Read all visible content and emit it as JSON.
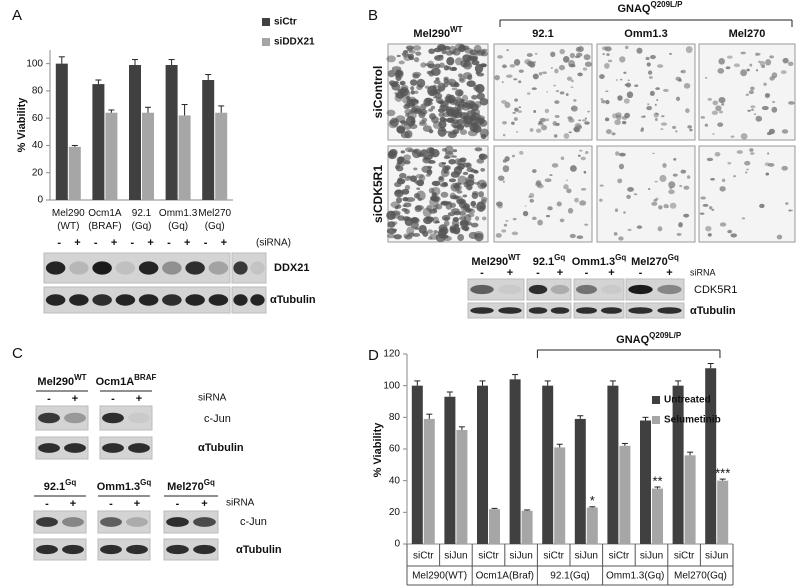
{
  "panel_labels": [
    "A",
    "B",
    "C",
    "D"
  ],
  "chart_data": [
    {
      "type": "bar",
      "y_label": "% Viability",
      "categories": [
        "Mel290\n(WT)",
        "Ocm1A\n(BRAF)",
        "92.1\n(Gq)",
        "Omm1.3\n(Gq)",
        "Mel270\n(Gq)"
      ],
      "series": [
        {
          "name": "siCtr",
          "color": "#404040",
          "values": [
            100,
            85,
            99,
            99,
            88
          ],
          "errors": [
            5,
            3,
            4,
            4,
            4
          ]
        },
        {
          "name": "siDDX21",
          "color": "#a6a6a6",
          "values": [
            39,
            64,
            64,
            62,
            64
          ],
          "errors": [
            1,
            2,
            4,
            8,
            5
          ]
        }
      ],
      "ylim": [
        0,
        110
      ],
      "yticks": [
        0,
        20,
        40,
        60,
        80,
        100
      ],
      "legend": "upper right"
    },
    {
      "type": "bar",
      "y_label": "% Viability",
      "categories": [
        "siCtr",
        "siJun",
        "siCtr",
        "siJun",
        "siCtr",
        "siJun",
        "siCtr",
        "siJun",
        "siCtr",
        "siJun"
      ],
      "groups": [
        "Mel290(WT)",
        "Ocm1A(Braf)",
        "92.1(Gq)",
        "Omm1.3(Gq)",
        "Mel270(Gq)"
      ],
      "bracket": {
        "text": "GNAQ",
        "sup": "Q209L/P"
      },
      "series": [
        {
          "name": "Untreated",
          "color": "#404040",
          "values": [
            100,
            93,
            100,
            104,
            100,
            79,
            100,
            78,
            100,
            111
          ],
          "errors": [
            3,
            3,
            3,
            3,
            3,
            2,
            3,
            2,
            3,
            3
          ]
        },
        {
          "name": "Selumetinib",
          "color": "#a6a6a6",
          "values": [
            79,
            72,
            22,
            21,
            61,
            23,
            62,
            35,
            56,
            40
          ],
          "errors": [
            3,
            2,
            0.5,
            0.5,
            2,
            0.5,
            1.5,
            1,
            2,
            1
          ],
          "markers": [
            null,
            null,
            null,
            null,
            null,
            "*",
            null,
            "**",
            null,
            "***"
          ]
        }
      ],
      "ylim": [
        0,
        120
      ],
      "yticks": [
        0,
        20,
        40,
        60,
        80,
        100,
        120
      ],
      "legend": "upper right"
    }
  ],
  "panel_a_blot": {
    "signs": [
      "-",
      "+"
    ],
    "sirna": "(siRNA)",
    "bands": [
      "DDX21",
      "αTubulin"
    ]
  },
  "panel_b": {
    "columns": [
      {
        "text": "Mel290",
        "sup": "WT"
      },
      {
        "text": "92.1"
      },
      {
        "text": "Omm1.3"
      },
      {
        "text": "Mel270"
      }
    ],
    "bracket": {
      "text": "GNAQ",
      "sup": "Q209L/P"
    },
    "rows": [
      "siControl",
      "siCDK5R1"
    ],
    "blot": {
      "lines": [
        {
          "text": "Mel290",
          "sup": "WT"
        },
        {
          "text": "92.1",
          "sup": "Gq"
        },
        {
          "text": "Omm1.3",
          "sup": "Gq"
        },
        {
          "text": "Mel270",
          "sup": "Gq"
        }
      ],
      "signs": [
        "-",
        "+"
      ],
      "sirna": "siRNA",
      "bands": [
        "CDK5R1",
        "αTubulin"
      ]
    }
  },
  "panel_c": {
    "top": [
      {
        "text": "Mel290",
        "sup": "WT"
      },
      {
        "text": "Ocm1A",
        "sup": "BRAF"
      }
    ],
    "bottom": [
      {
        "text": "92.1",
        "sup": "Gq"
      },
      {
        "text": "Omm1.3",
        "sup": "Gq"
      },
      {
        "text": "Mel270",
        "sup": "Gq"
      }
    ],
    "signs": [
      "-",
      "+"
    ],
    "sirna": "siRNA",
    "bands": [
      "c-Jun",
      "αTubulin"
    ]
  }
}
